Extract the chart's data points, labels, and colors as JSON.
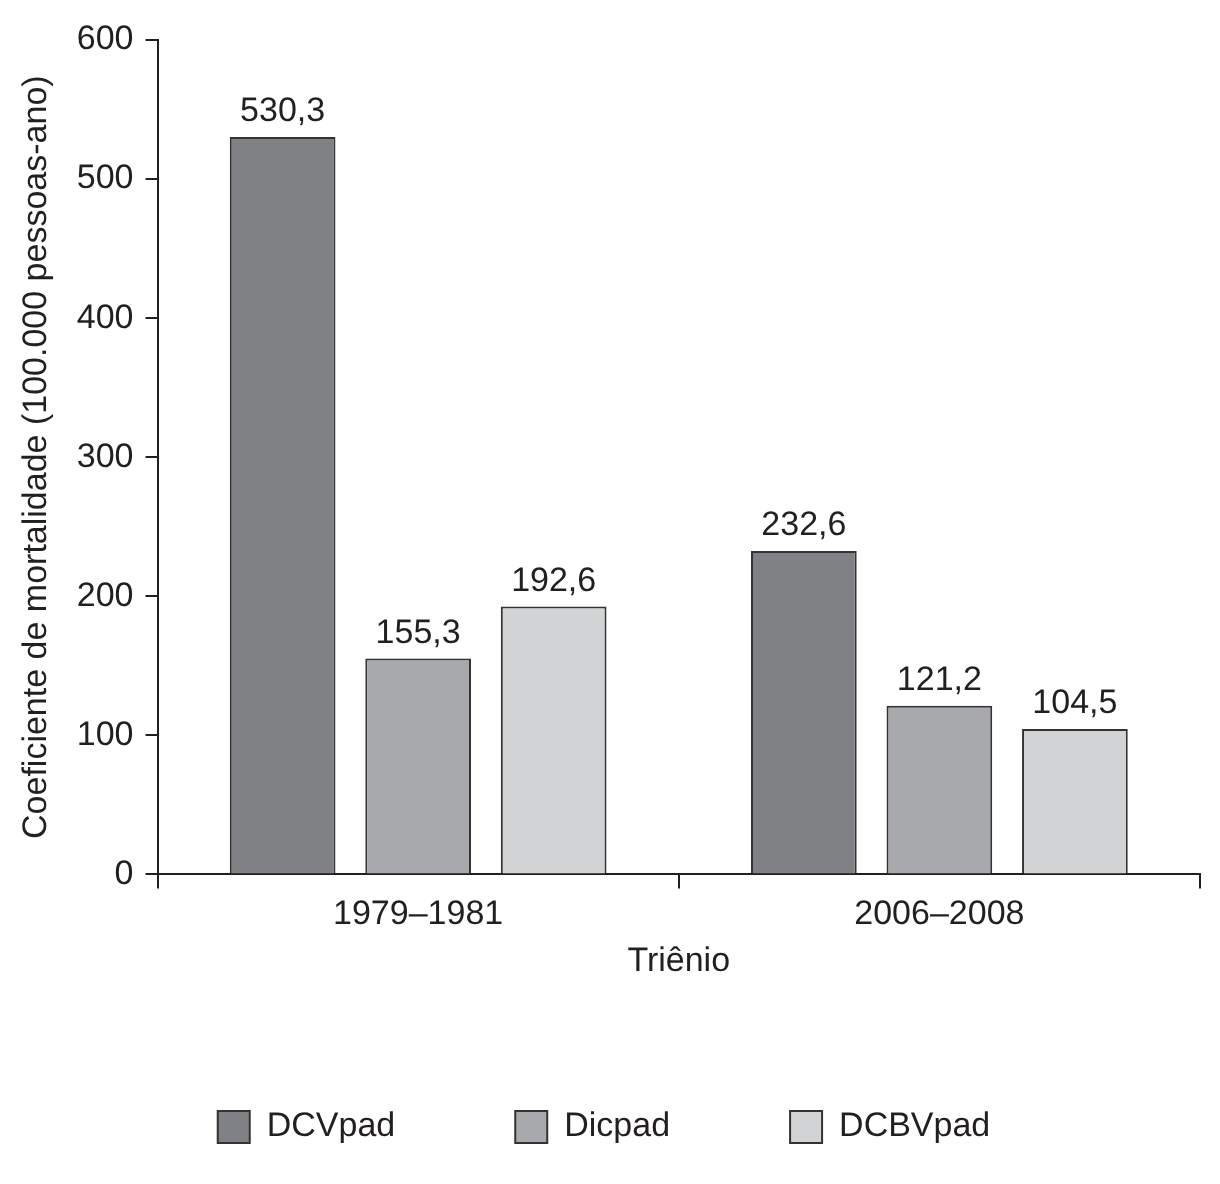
{
  "chart_data": {
    "type": "bar",
    "xlabel": "Triênio",
    "ylabel": "Coeficiente de mortalidade (100.000 pessoas-ano)",
    "categories": [
      "1979–1981",
      "2006–2008"
    ],
    "series": [
      {
        "name": "DCVpad",
        "color": "#808184",
        "values": [
          530.3,
          232.6
        ],
        "value_labels": [
          "530,3",
          "232,6"
        ]
      },
      {
        "name": "Dicpad",
        "color": "#a7a9ac",
        "values": [
          155.3,
          121.2
        ],
        "value_labels": [
          "155,3",
          "121,2"
        ]
      },
      {
        "name": "DCBVpad",
        "color": "#d1d3d4",
        "values": [
          192.6,
          104.5
        ],
        "value_labels": [
          "192,6",
          "104,5"
        ]
      }
    ],
    "ylim": [
      0,
      600
    ],
    "yticks": [
      0,
      100,
      200,
      300,
      400,
      500,
      600
    ],
    "grid": false,
    "legend": "bottom"
  }
}
